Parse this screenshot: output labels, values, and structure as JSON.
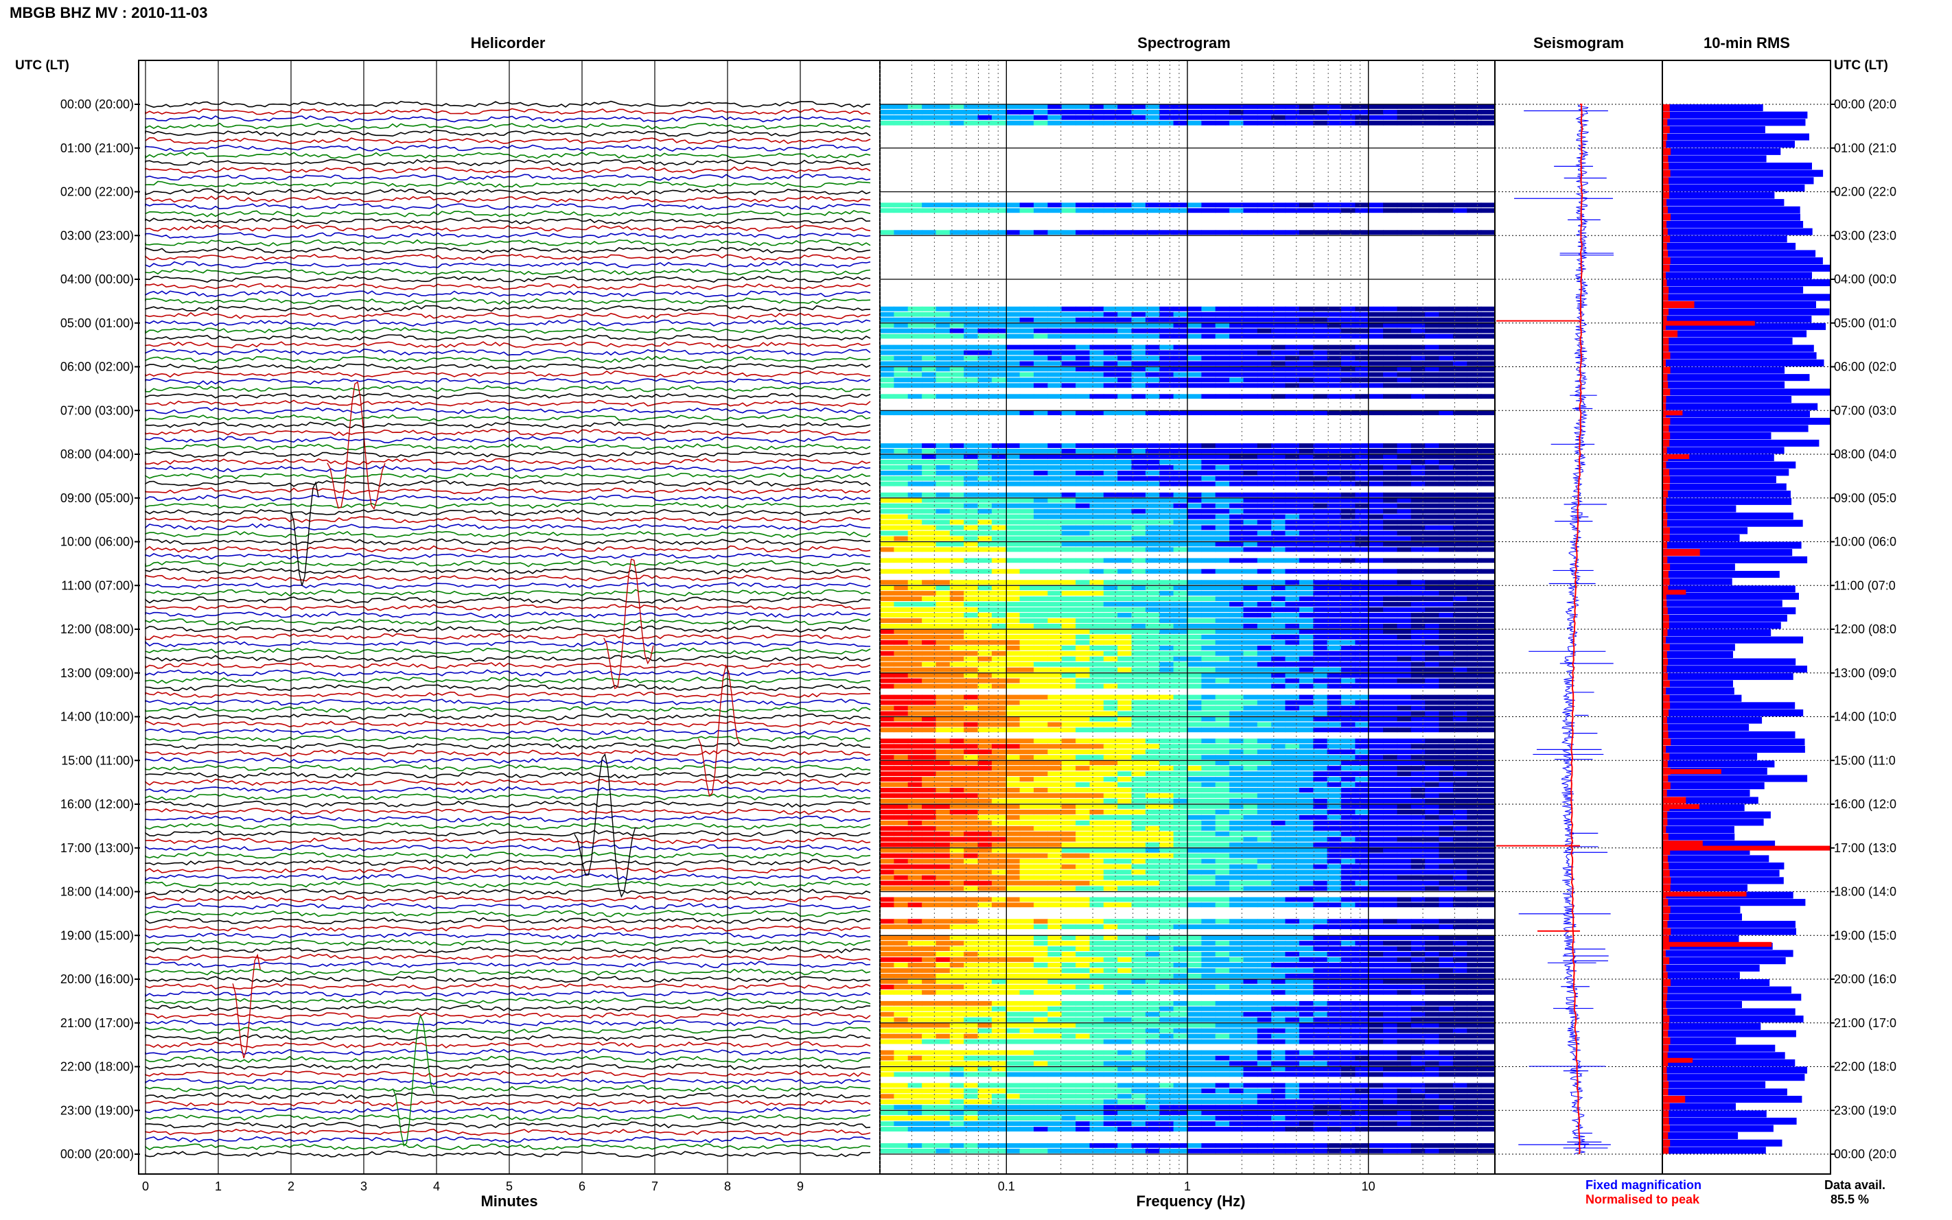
{
  "figure": {
    "title": "MBGB BHZ MV : 2010-11-03"
  },
  "panels": {
    "helicorder": {
      "title": "Helicorder"
    },
    "spectrogram": {
      "title": "Spectrogram"
    },
    "seismogram": {
      "title": "Seismogram"
    },
    "rms": {
      "title": "10-min RMS"
    }
  },
  "time_axis": {
    "left_header": "UTC (LT)",
    "right_header": "UTC (LT)",
    "hour_labels": [
      "00:00 (20:00)",
      "01:00 (21:00)",
      "02:00 (22:00)",
      "03:00 (23:00)",
      "04:00 (00:00)",
      "05:00 (01:00)",
      "06:00 (02:00)",
      "07:00 (03:00)",
      "08:00 (04:00)",
      "09:00 (05:00)",
      "10:00 (06:00)",
      "11:00 (07:00)",
      "12:00 (08:00)",
      "13:00 (09:00)",
      "14:00 (10:00)",
      "15:00 (11:00)",
      "16:00 (12:00)",
      "17:00 (13:00)",
      "18:00 (14:00)",
      "19:00 (15:00)",
      "20:00 (16:00)",
      "21:00 (17:00)",
      "22:00 (18:00)",
      "23:00 (19:00)",
      "00:00 (20:00)"
    ],
    "right_labels": [
      "00:00 (20:0",
      "01:00 (21:0",
      "02:00 (22:0",
      "03:00 (23:0",
      "04:00 (00:0",
      "05:00 (01:0",
      "06:00 (02:0",
      "07:00 (03:0",
      "08:00 (04:0",
      "09:00 (05:0",
      "10:00 (06:0",
      "11:00 (07:0",
      "12:00 (08:0",
      "13:00 (09:0",
      "14:00 (10:0",
      "15:00 (11:0",
      "16:00 (12:0",
      "17:00 (13:0",
      "18:00 (14:0",
      "19:00 (15:0",
      "20:00 (16:0",
      "21:00 (17:0",
      "22:00 (18:0",
      "23:00 (19:0",
      "00:00 (20:0"
    ]
  },
  "helicorder_axis": {
    "xlabel": "Minutes",
    "ticks": [
      "0",
      "1",
      "2",
      "3",
      "4",
      "5",
      "6",
      "7",
      "8",
      "9"
    ]
  },
  "spectrogram_axis": {
    "xlabel": "Frequency (Hz)",
    "ticks": [
      "0.1",
      "1",
      "10"
    ]
  },
  "legend": {
    "fixed": "Fixed magnification",
    "normalised": "Normalised to peak",
    "fixed_color": "#0000ff",
    "normalised_color": "#ff0000"
  },
  "availability": {
    "label": "Data avail.",
    "value": "85.5 %"
  },
  "chart_data": [
    {
      "type": "line",
      "name": "helicorder",
      "x_unit": "minutes",
      "xlim": [
        0,
        10
      ],
      "rows_per_hour": 6,
      "rows": 144,
      "trace_colors": [
        "#000000",
        "#c00000",
        "#0000c0",
        "#008000"
      ]
    },
    {
      "type": "heatmap",
      "name": "spectrogram",
      "x_scale": "log",
      "xlim": [
        0.02,
        50
      ],
      "colormap": [
        "#00008f",
        "#0000ff",
        "#00b0ff",
        "#40ffc0",
        "#ffff00",
        "#ff8000",
        "#ff0000"
      ],
      "data_gaps_utc_hours": [
        [
          0.4,
          2.2
        ],
        [
          2.4,
          4.6
        ],
        [
          6.5,
          7.7
        ]
      ]
    },
    {
      "type": "line",
      "name": "seismogram",
      "series": [
        {
          "name": "Fixed magnification",
          "color": "#0000ff"
        },
        {
          "name": "Normalised to peak",
          "color": "#ff0000"
        }
      ]
    },
    {
      "type": "bar",
      "name": "10-min RMS",
      "orientation": "horizontal",
      "note_series": "fixed (blue) and normalised (red) per 10-minute interval"
    }
  ]
}
